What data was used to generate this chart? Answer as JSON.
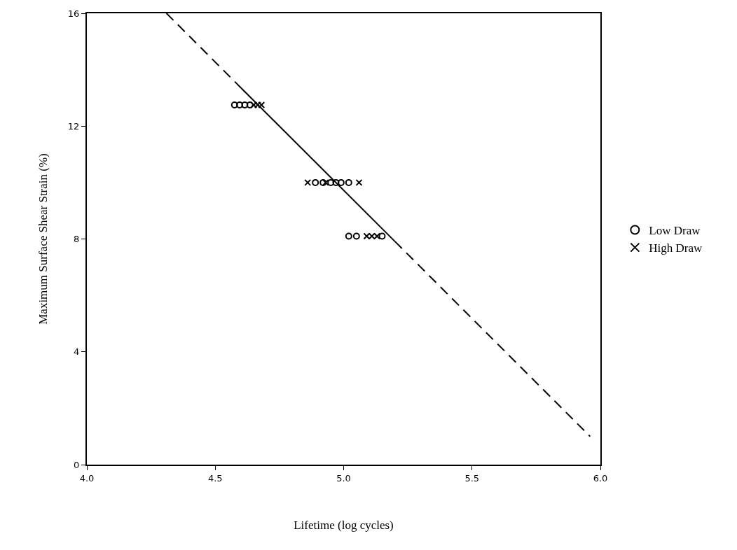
{
  "chart_data": {
    "type": "scatter",
    "xlabel": "Lifetime (log cycles)",
    "ylabel": "Maximum Surface Shear Strain (%)",
    "xlim": [
      4.0,
      6.0
    ],
    "xticks": [
      {
        "value": 4,
        "label": "4.0"
      },
      {
        "value": 4.5,
        "label": "4.5"
      },
      {
        "value": 5,
        "label": "5.0"
      },
      {
        "value": 5.5,
        "label": "5.5"
      },
      {
        "value": 6,
        "label": "6.0"
      }
    ],
    "ylim": [
      0,
      16
    ],
    "yticks": [
      0,
      4,
      8,
      12,
      16
    ],
    "grid": false,
    "legend": "right",
    "series": [
      {
        "name": "Low Draw",
        "color": "#000000",
        "marker": "circle",
        "x": [
          4.575,
          4.595,
          4.615,
          4.635,
          4.89,
          4.92,
          4.95,
          4.97,
          4.99,
          5.02,
          5.02,
          5.05,
          5.15
        ],
        "values": [
          12.75,
          12.75,
          12.75,
          12.75,
          10,
          10,
          10,
          10,
          10,
          10,
          8.1,
          8.1,
          8.1
        ]
      },
      {
        "name": "High Draw",
        "color": "#000000",
        "marker": "cross",
        "x": [
          4.65,
          4.665,
          4.68,
          4.86,
          4.93,
          5.06,
          5.09,
          5.11,
          5.13
        ],
        "values": [
          12.75,
          12.75,
          12.75,
          10,
          10,
          10,
          8.1,
          8.1,
          8.1
        ]
      },
      {
        "type": "line",
        "color": "#000000",
        "line_style": "dashed",
        "x": [
          4.31,
          4.6
        ],
        "values": [
          16,
          13.36
        ]
      },
      {
        "type": "line",
        "color": "#000000",
        "line_style": "solid",
        "x": [
          4.6,
          5.2
        ],
        "values": [
          13.36,
          7.91
        ]
      },
      {
        "type": "line",
        "color": "#000000",
        "line_style": "dashed",
        "x": [
          5.2,
          5.96
        ],
        "values": [
          7.91,
          1
        ]
      }
    ]
  }
}
